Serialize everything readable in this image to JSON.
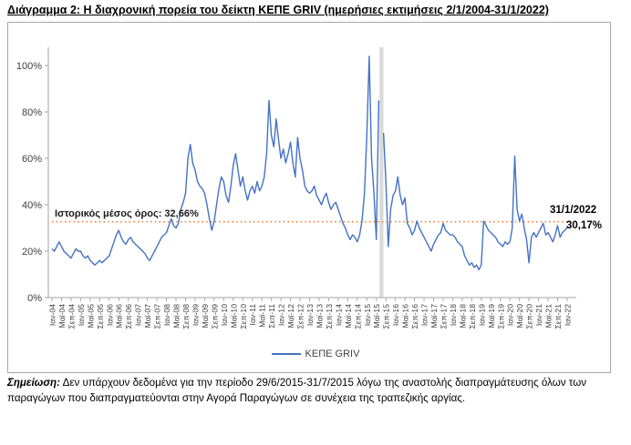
{
  "figure": {
    "title": "Διάγραμμα 2: Η διαχρονική πορεία του δείκτη ΚΕΠΕ GRIV (ημερήσιες εκτιμήσεις 2/1/2004-31/1/2022)",
    "note_label": "Σημείωση:",
    "note_text": " Δεν υπάρχουν δεδομένα για την περίοδο 29/6/2015-31/7/2015 λόγω της αναστολής διαπραγμάτευσης όλων των παραγώγων που διαπραγματεύονται στην Αγορά Παραγώγων σε συνέχεια της τραπεζικής αργίας."
  },
  "chart_data": {
    "type": "line",
    "title": "Η διαχρονική πορεία του δείκτη ΚΕΠΕ GRIV",
    "unit": "%",
    "ylim": [
      0,
      100
    ],
    "y_tick_labels": [
      "0%",
      "20%",
      "40%",
      "60%",
      "80%",
      "100%"
    ],
    "y_tick_values": [
      0,
      20,
      40,
      60,
      80,
      100
    ],
    "x_start": "Ιαν-04",
    "x_end": "Ιαν-22",
    "x_tick_labels": [
      "Ιαν-04",
      "Μαϊ-04",
      "Σεπ-04",
      "Ιαν-05",
      "Μαϊ-05",
      "Σεπ-05",
      "Ιαν-06",
      "Μαϊ-06",
      "Σεπ-06",
      "Ιαν-07",
      "Μαϊ-07",
      "Σεπ-07",
      "Ιαν-08",
      "Μαϊ-08",
      "Σεπ-08",
      "Ιαν-09",
      "Μαϊ-09",
      "Σεπ-09",
      "Ιαν-10",
      "Μαϊ-10",
      "Σεπ-10",
      "Ιαν-11",
      "Μαϊ-11",
      "Σεπ-11",
      "Ιαν-12",
      "Μαϊ-12",
      "Σεπ-12",
      "Ιαν-13",
      "Μαϊ-13",
      "Σεπ-13",
      "Ιαν-14",
      "Μαϊ-14",
      "Σεπ-14",
      "Ιαν-15",
      "Μαϊ-15",
      "Σεπ-15",
      "Ιαν-16",
      "Μαϊ-16",
      "Σεπ-16",
      "Ιαν-17",
      "Μαϊ-17",
      "Σεπ-17",
      "Ιαν-18",
      "Μαϊ-18",
      "Σεπ-18",
      "Ιαν-19",
      "Μαϊ-19",
      "Σεπ-19",
      "Ιαν-20",
      "Μαϊ-20",
      "Σεπ-20",
      "Ιαν-21",
      "Μαϊ-21",
      "Σεπ-21",
      "Ιαν-22"
    ],
    "legend": {
      "label": "ΚΕΠΕ GRIV",
      "position": "bottom"
    },
    "series": [
      {
        "name": "ΚΕΠΕ GRIV",
        "color": "#4472C4",
        "frequency": "monthly approximation of daily estimates (null = trading suspension gap)",
        "values": [
          21,
          20,
          22,
          24,
          22,
          20,
          19,
          18,
          17,
          19,
          21,
          20,
          20,
          18,
          17,
          18,
          16,
          15,
          14,
          15,
          16,
          15,
          16,
          17,
          18,
          21,
          24,
          27,
          29,
          26,
          24,
          23,
          25,
          26,
          24,
          23,
          22,
          21,
          20,
          19,
          17,
          16,
          18,
          20,
          22,
          24,
          26,
          27,
          28,
          31,
          34,
          31,
          30,
          32,
          38,
          41,
          45,
          60,
          66,
          58,
          55,
          50,
          48,
          47,
          45,
          40,
          34,
          29,
          33,
          40,
          47,
          52,
          50,
          44,
          41,
          48,
          57,
          62,
          55,
          48,
          52,
          46,
          42,
          46,
          48,
          45,
          50,
          46,
          48,
          52,
          62,
          85,
          70,
          65,
          77,
          68,
          60,
          64,
          58,
          62,
          67,
          58,
          52,
          69,
          60,
          55,
          48,
          46,
          45,
          46,
          48,
          44,
          42,
          40,
          43,
          45,
          41,
          38,
          40,
          41,
          38,
          35,
          32,
          30,
          27,
          25,
          27,
          26,
          24,
          27,
          33,
          45,
          70,
          104,
          60,
          45,
          25,
          85,
          null,
          71,
          50,
          22,
          38,
          44,
          46,
          52,
          44,
          40,
          43,
          32,
          30,
          27,
          29,
          33,
          30,
          28,
          26,
          24,
          22,
          20,
          23,
          25,
          27,
          28,
          32,
          29,
          28,
          27,
          27,
          26,
          24,
          23,
          22,
          18,
          16,
          14,
          15,
          13,
          14,
          12,
          14,
          33,
          31,
          29,
          28,
          27,
          26,
          24,
          23,
          22,
          24,
          23,
          24,
          30,
          61,
          38,
          33,
          36,
          30,
          25,
          15,
          26,
          28,
          26,
          28,
          30,
          32,
          27,
          28,
          26,
          24,
          27,
          31,
          26,
          28,
          29,
          30.17
        ]
      }
    ],
    "mean_line": {
      "label": "Ιστορικός μέσος όρος: 32,66%",
      "value": 32.66,
      "color": "#ED7D31",
      "style": "dotted"
    },
    "gap_band": {
      "start": "29/6/2015",
      "end": "31/7/2015",
      "color": "#D9D9D9"
    },
    "end_annotation": {
      "date": "31/1/2022",
      "value": "30,17%"
    },
    "grid": "off"
  }
}
